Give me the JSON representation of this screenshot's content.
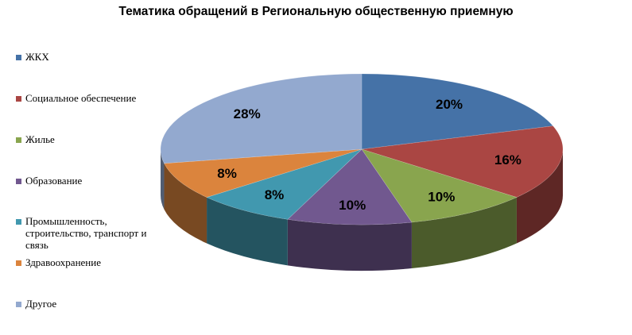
{
  "chart_data": {
    "type": "pie",
    "title": "Тематика обращений в Региональную общественную приемную",
    "legend_position": "left",
    "categories": [
      "ЖКХ",
      "Социальное  обеспечение",
      "Жилье",
      "Образование",
      "Промышленность, строительство, транспорт и связь",
      "Здравоохранение",
      "Другое"
    ],
    "values": [
      20,
      16,
      10,
      10,
      8,
      8,
      28
    ],
    "value_labels": [
      "20%",
      "16%",
      "10%",
      "10%",
      "8%",
      "8%",
      "28%"
    ],
    "colors": [
      "#4572A7",
      "#AA4643",
      "#89A54E",
      "#71588F",
      "#4198AF",
      "#DB843D",
      "#93A9CF"
    ],
    "style": "3d-pie"
  }
}
